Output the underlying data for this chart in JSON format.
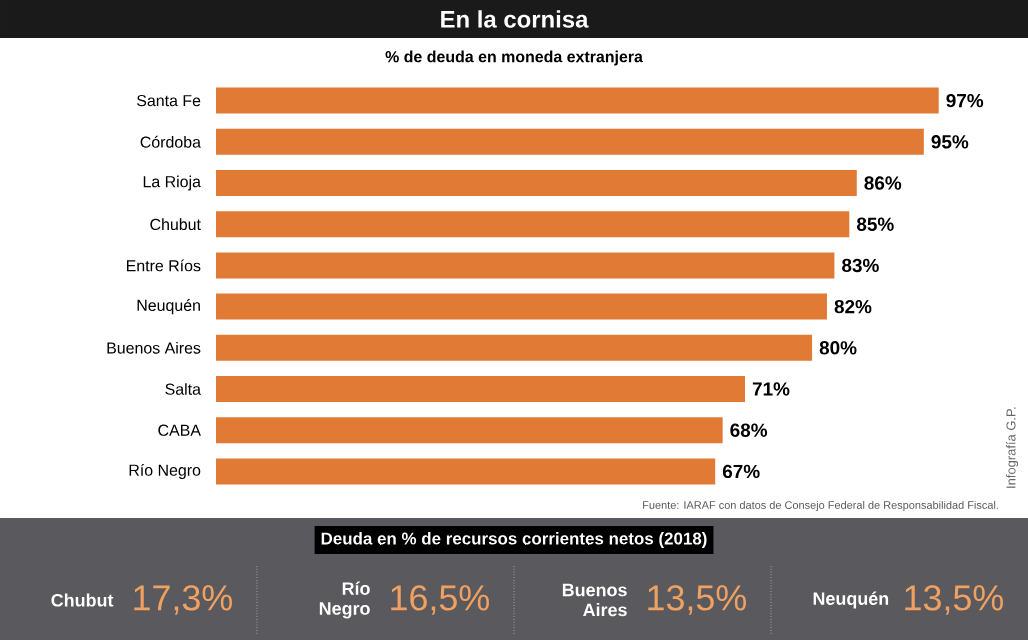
{
  "chart_data": [
    {
      "type": "bar",
      "orientation": "horizontal",
      "title": "En la cornisa",
      "subtitle": "% de deuda en moneda extranjera",
      "categories": [
        "Santa Fe",
        "Córdoba",
        "La Rioja",
        "Chubut",
        "Entre Ríos",
        "Neuquén",
        "Buenos Aires",
        "Salta",
        "CABA",
        "Río Negro"
      ],
      "values": [
        97,
        95,
        86,
        85,
        83,
        82,
        80,
        71,
        68,
        67
      ],
      "value_labels": [
        "97%",
        "95%",
        "86%",
        "85%",
        "83%",
        "82%",
        "80%",
        "71%",
        "68%",
        "67%"
      ],
      "color": "#e07a35",
      "annotations": [
        "Fuente: IARAF con datos de Consejo Federal de Responsabilidad Fiscal.",
        "Infografía G.P."
      ]
    },
    {
      "type": "other",
      "title": "Deuda en % de recursos corrientes netos (2018)",
      "categories": [
        "Chubut",
        "Río Negro",
        "Buenos Aires",
        "Neuquén"
      ],
      "value_labels": [
        "17,3%",
        "16,5%",
        "13,5%",
        "13,5%"
      ],
      "color": "#f0a060"
    }
  ]
}
